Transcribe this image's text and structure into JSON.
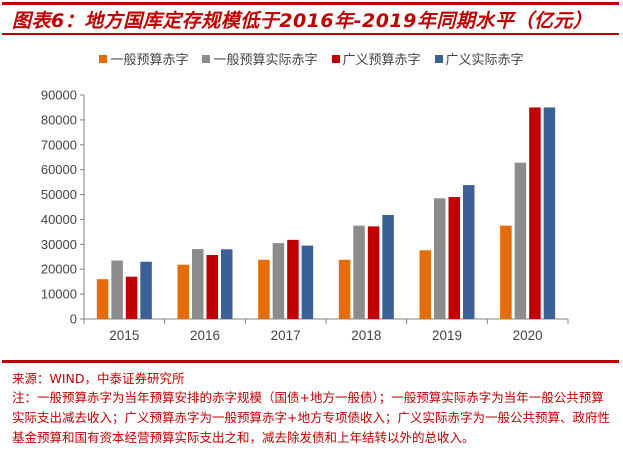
{
  "title": "图表6：地方国库定存规模低于2016年-2019年同期水平（亿元）",
  "source": "来源：WIND，中泰证券研究所",
  "note": "注：一般预算赤字为当年预算安排的赤字规模（国债+地方一般债）；一般预算实际赤字为当年一般公共预算实际支出减去收入；广义预算赤字为一般预算赤字+地方专项债收入；广义实际赤字为一般公共预算、政府性基金预算和国有资本经营预算实际支出之和，减去除发债和上年结转以外的总收入。",
  "chart_data": {
    "type": "bar",
    "title": "图表6：地方国库定存规模低于2016年-2019年同期水平（亿元）",
    "categories": [
      "2015",
      "2016",
      "2017",
      "2018",
      "2019",
      "2020"
    ],
    "series": [
      {
        "name": "一般预算赤字",
        "color": "#e46c0a",
        "values": [
          16000,
          21800,
          23800,
          23800,
          27600,
          37500
        ]
      },
      {
        "name": "一般预算实际赤字",
        "color": "#8c8c8c",
        "values": [
          23500,
          28100,
          30500,
          37500,
          48500,
          62800
        ]
      },
      {
        "name": "广义预算赤字",
        "color": "#c00000",
        "values": [
          17000,
          25700,
          31800,
          37200,
          49000,
          85000
        ]
      },
      {
        "name": "广义实际赤字",
        "color": "#3a6096",
        "values": [
          23000,
          28000,
          29500,
          41800,
          53800,
          85000
        ]
      }
    ],
    "yticks": [
      "0",
      "10000",
      "20000",
      "30000",
      "40000",
      "50000",
      "60000",
      "70000",
      "80000",
      "90000"
    ],
    "ylim": [
      0,
      90000
    ],
    "grid": false,
    "legend": "top"
  }
}
